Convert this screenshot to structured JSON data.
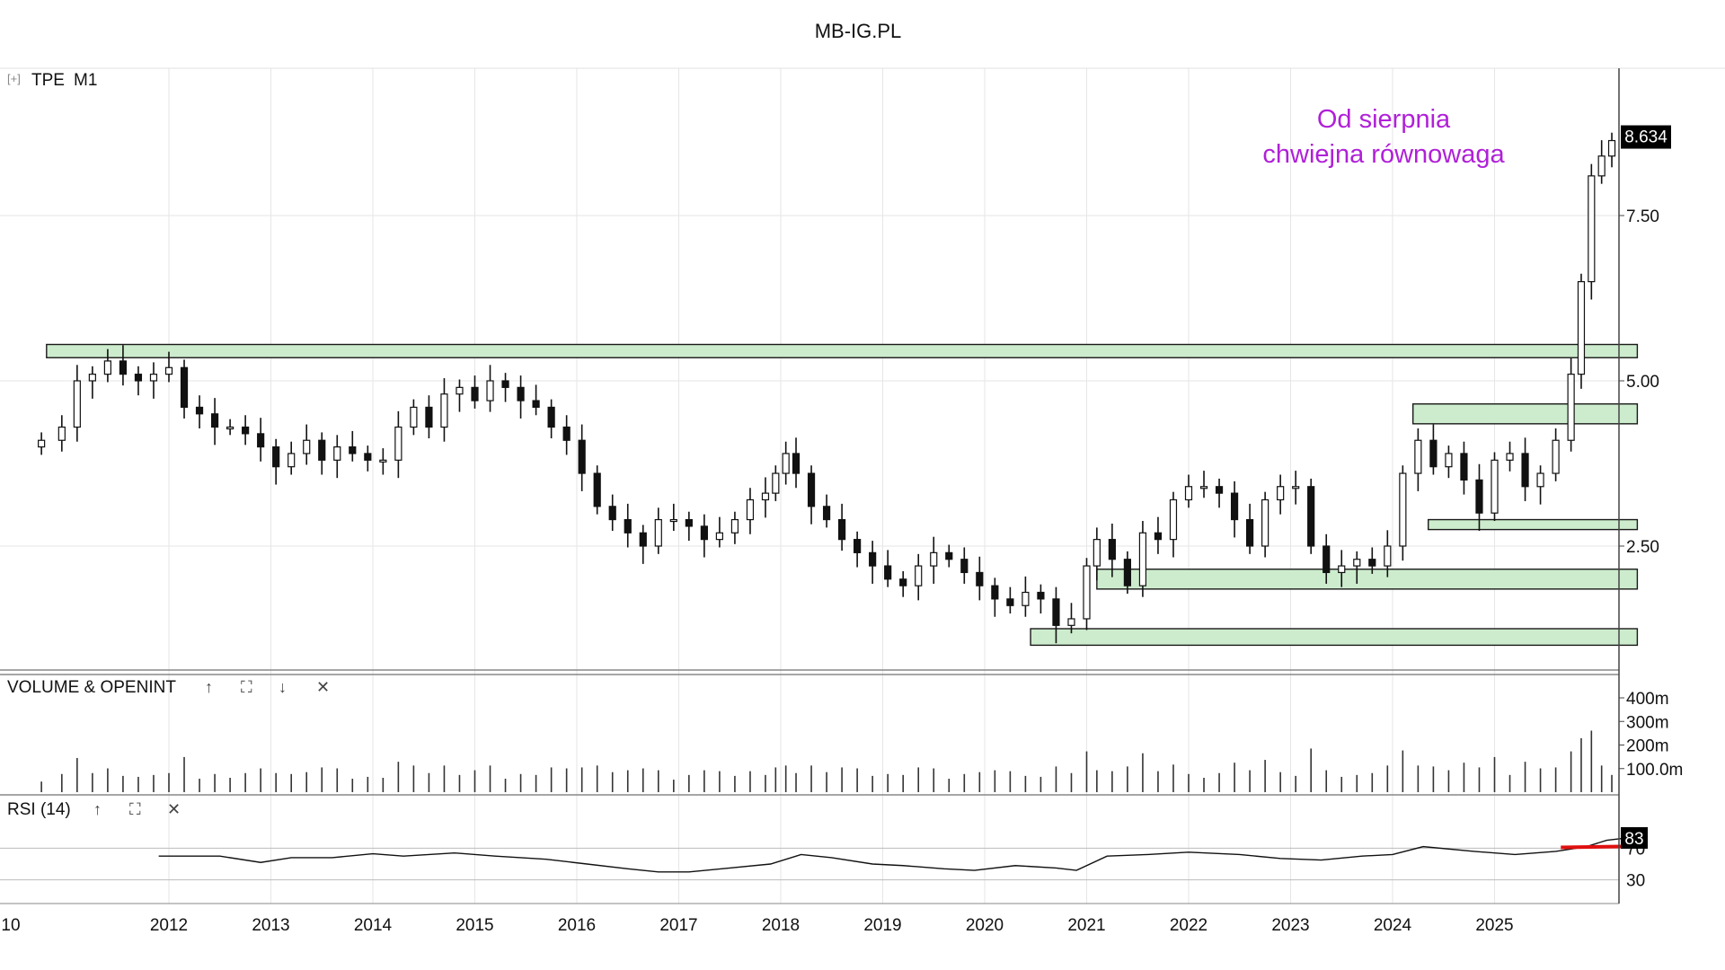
{
  "header": {
    "title": "MB-IG.PL"
  },
  "main_panel": {
    "expand_glyph": "[+]",
    "symbol": "TPE",
    "timeframe": "M1",
    "annotation_line1": "Od sierpnia",
    "annotation_line2": "chwiejna równowaga",
    "last_price_label": "8.634"
  },
  "volume_panel": {
    "label": "VOLUME & OPENINT",
    "controls": [
      "↑",
      "⛶",
      "↓",
      "✕"
    ]
  },
  "rsi_panel": {
    "label": "RSI (14)",
    "controls": [
      "↑",
      "⛶",
      "✕"
    ],
    "last_value_label": "83"
  },
  "colors": {
    "zone_fill": "#cdeccd",
    "zone_stroke": "#1a1a1a",
    "candle": "#111111",
    "annotation": "#b020d8",
    "rsi_marker": "#e01010",
    "grid": "#e6e6e6",
    "price_tag_bg": "#000000"
  },
  "chart_data": [
    {
      "type": "candlestick",
      "title": "TPE M1",
      "interval": "monthly",
      "x_tick_labels": [
        "10",
        "2012",
        "2013",
        "2014",
        "2015",
        "2016",
        "2017",
        "2018",
        "2019",
        "2020",
        "2021",
        "2022",
        "2023",
        "2024",
        "2025"
      ],
      "y_tick_labels": [
        "2.50",
        "5.00",
        "7.50"
      ],
      "ylim": [
        0.5,
        9.5
      ],
      "grid": true,
      "last_price": 8.634,
      "series": [
        {
          "values": [
            [
              2010.75,
              4.1
            ],
            [
              2010.95,
              4.3
            ],
            [
              2011.1,
              5.0
            ],
            [
              2011.25,
              5.1
            ],
            [
              2011.4,
              5.3
            ],
            [
              2011.55,
              5.1
            ],
            [
              2011.7,
              5.0
            ],
            [
              2011.85,
              5.1
            ],
            [
              2012.0,
              5.2
            ],
            [
              2012.15,
              4.6
            ],
            [
              2012.3,
              4.5
            ],
            [
              2012.45,
              4.3
            ],
            [
              2012.6,
              4.3
            ],
            [
              2012.75,
              4.2
            ],
            [
              2012.9,
              4.0
            ],
            [
              2013.05,
              3.7
            ],
            [
              2013.2,
              3.9
            ],
            [
              2013.35,
              4.1
            ],
            [
              2013.5,
              3.8
            ],
            [
              2013.65,
              4.0
            ],
            [
              2013.8,
              3.9
            ],
            [
              2013.95,
              3.8
            ],
            [
              2014.1,
              3.8
            ],
            [
              2014.25,
              4.3
            ],
            [
              2014.4,
              4.6
            ],
            [
              2014.55,
              4.3
            ],
            [
              2014.7,
              4.8
            ],
            [
              2014.85,
              4.9
            ],
            [
              2015.0,
              4.7
            ],
            [
              2015.15,
              5.0
            ],
            [
              2015.3,
              4.9
            ],
            [
              2015.45,
              4.7
            ],
            [
              2015.6,
              4.6
            ],
            [
              2015.75,
              4.3
            ],
            [
              2015.9,
              4.1
            ],
            [
              2016.05,
              3.6
            ],
            [
              2016.2,
              3.1
            ],
            [
              2016.35,
              2.9
            ],
            [
              2016.5,
              2.7
            ],
            [
              2016.65,
              2.5
            ],
            [
              2016.8,
              2.9
            ],
            [
              2016.95,
              2.9
            ],
            [
              2017.1,
              2.8
            ],
            [
              2017.25,
              2.6
            ],
            [
              2017.4,
              2.7
            ],
            [
              2017.55,
              2.9
            ],
            [
              2017.7,
              3.2
            ],
            [
              2017.85,
              3.3
            ],
            [
              2017.95,
              3.6
            ],
            [
              2018.05,
              3.9
            ],
            [
              2018.15,
              3.6
            ],
            [
              2018.3,
              3.1
            ],
            [
              2018.45,
              2.9
            ],
            [
              2018.6,
              2.6
            ],
            [
              2018.75,
              2.4
            ],
            [
              2018.9,
              2.2
            ],
            [
              2019.05,
              2.0
            ],
            [
              2019.2,
              1.9
            ],
            [
              2019.35,
              2.2
            ],
            [
              2019.5,
              2.4
            ],
            [
              2019.65,
              2.3
            ],
            [
              2019.8,
              2.1
            ],
            [
              2019.95,
              1.9
            ],
            [
              2020.1,
              1.7
            ],
            [
              2020.25,
              1.6
            ],
            [
              2020.4,
              1.8
            ],
            [
              2020.55,
              1.7
            ],
            [
              2020.7,
              1.3
            ],
            [
              2020.85,
              1.4
            ],
            [
              2021.0,
              2.2
            ],
            [
              2021.1,
              2.6
            ],
            [
              2021.25,
              2.3
            ],
            [
              2021.4,
              1.9
            ],
            [
              2021.55,
              2.7
            ],
            [
              2021.7,
              2.6
            ],
            [
              2021.85,
              3.2
            ],
            [
              2022.0,
              3.4
            ],
            [
              2022.15,
              3.4
            ],
            [
              2022.3,
              3.3
            ],
            [
              2022.45,
              2.9
            ],
            [
              2022.6,
              2.5
            ],
            [
              2022.75,
              3.2
            ],
            [
              2022.9,
              3.4
            ],
            [
              2023.05,
              3.4
            ],
            [
              2023.2,
              2.5
            ],
            [
              2023.35,
              2.1
            ],
            [
              2023.5,
              2.2
            ],
            [
              2023.65,
              2.3
            ],
            [
              2023.8,
              2.2
            ],
            [
              2023.95,
              2.5
            ],
            [
              2024.1,
              3.6
            ],
            [
              2024.25,
              4.1
            ],
            [
              2024.4,
              3.7
            ],
            [
              2024.55,
              3.9
            ],
            [
              2024.7,
              3.5
            ],
            [
              2024.85,
              3.0
            ],
            [
              2025.0,
              3.8
            ],
            [
              2025.15,
              3.9
            ],
            [
              2025.3,
              3.4
            ],
            [
              2025.45,
              3.6
            ],
            [
              2025.6,
              4.1
            ],
            [
              2025.75,
              5.1
            ],
            [
              2025.85,
              6.5
            ],
            [
              2025.95,
              8.1
            ],
            [
              2026.05,
              8.4
            ],
            [
              2026.15,
              8.634
            ]
          ]
        }
      ],
      "zones": [
        {
          "y": [
            5.35,
            5.55
          ],
          "x": [
            2010.8,
            2026.4
          ]
        },
        {
          "y": [
            4.35,
            4.65
          ],
          "x": [
            2024.2,
            2026.4
          ]
        },
        {
          "y": [
            2.75,
            2.9
          ],
          "x": [
            2024.35,
            2026.4
          ]
        },
        {
          "y": [
            1.85,
            2.15
          ],
          "x": [
            2021.1,
            2026.4
          ]
        },
        {
          "y": [
            1.0,
            1.25
          ],
          "x": [
            2020.45,
            2026.4
          ]
        }
      ]
    },
    {
      "type": "bar",
      "title": "VOLUME & OPENINT",
      "y_tick_labels": [
        "400m",
        "300m",
        "200m",
        "100.0m"
      ],
      "ylim": [
        0,
        450
      ]
    },
    {
      "type": "line",
      "title": "RSI (14)",
      "y_tick_labels": [
        "70",
        "30"
      ],
      "ylim": [
        0,
        100
      ],
      "last_value": 83,
      "series": [
        {
          "values": [
            [
              2011.9,
              60
            ],
            [
              2012.5,
              60
            ],
            [
              2012.9,
              52
            ],
            [
              2013.2,
              58
            ],
            [
              2013.6,
              58
            ],
            [
              2014.0,
              63
            ],
            [
              2014.3,
              60
            ],
            [
              2014.8,
              64
            ],
            [
              2015.2,
              60
            ],
            [
              2015.7,
              56
            ],
            [
              2016.1,
              50
            ],
            [
              2016.5,
              44
            ],
            [
              2016.8,
              40
            ],
            [
              2017.1,
              40
            ],
            [
              2017.5,
              45
            ],
            [
              2017.9,
              50
            ],
            [
              2018.2,
              62
            ],
            [
              2018.5,
              58
            ],
            [
              2018.9,
              50
            ],
            [
              2019.2,
              48
            ],
            [
              2019.6,
              44
            ],
            [
              2019.9,
              42
            ],
            [
              2020.3,
              48
            ],
            [
              2020.7,
              45
            ],
            [
              2020.9,
              42
            ],
            [
              2021.2,
              60
            ],
            [
              2021.6,
              62
            ],
            [
              2022.0,
              65
            ],
            [
              2022.5,
              62
            ],
            [
              2022.9,
              57
            ],
            [
              2023.3,
              55
            ],
            [
              2023.7,
              60
            ],
            [
              2024.0,
              62
            ],
            [
              2024.3,
              72
            ],
            [
              2024.8,
              66
            ],
            [
              2025.2,
              62
            ],
            [
              2025.6,
              66
            ],
            [
              2025.9,
              72
            ],
            [
              2026.1,
              80
            ],
            [
              2026.3,
              83
            ]
          ]
        }
      ]
    }
  ]
}
